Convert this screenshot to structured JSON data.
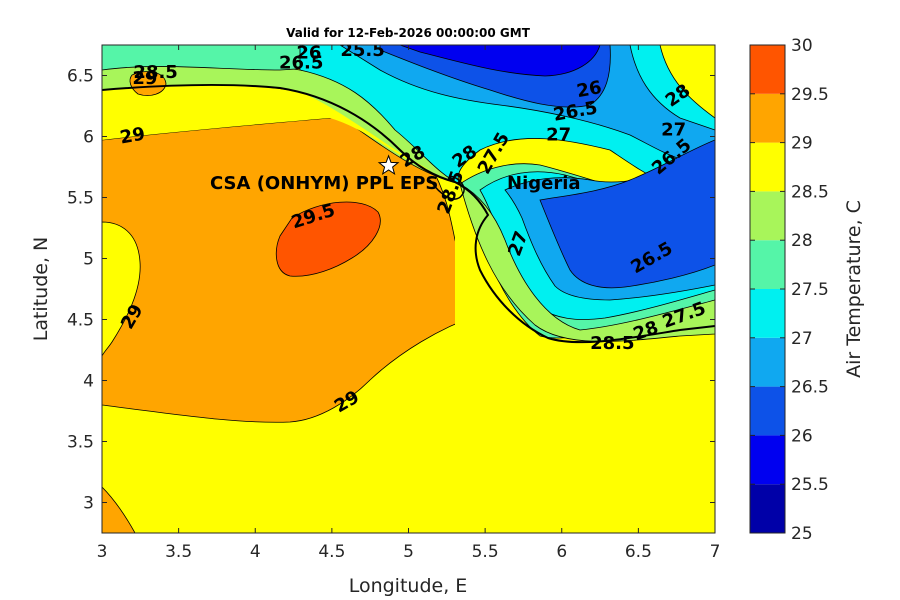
{
  "chart_data": {
    "type": "heatmap",
    "title": "Valid for 12-Feb-2026 00:00:00 GMT",
    "xlabel": "Longitude, E",
    "ylabel": "Latitude, N",
    "xlim": [
      3,
      7
    ],
    "ylim": [
      2.75,
      6.75
    ],
    "xticks": [
      "3",
      "3.5",
      "4",
      "4.5",
      "5",
      "5.5",
      "6",
      "6.5",
      "7"
    ],
    "yticks": [
      "3",
      "3.5",
      "4",
      "4.5",
      "5",
      "5.5",
      "6",
      "6.5"
    ],
    "colorbar": {
      "label": "Air Temperature, C",
      "ticks": [
        "25",
        "25.5",
        "26",
        "26.5",
        "27",
        "27.5",
        "28",
        "28.5",
        "29",
        "29.5",
        "30"
      ],
      "levels": [
        {
          "from": 25.0,
          "to": 25.5,
          "color": "#0000a8"
        },
        {
          "from": 25.5,
          "to": 26.0,
          "color": "#0000f0"
        },
        {
          "from": 26.0,
          "to": 26.5,
          "color": "#0d52e8"
        },
        {
          "from": 26.5,
          "to": 27.0,
          "color": "#10a8f0"
        },
        {
          "from": 27.0,
          "to": 27.5,
          "color": "#00f0f0"
        },
        {
          "from": 27.5,
          "to": 28.0,
          "color": "#55f5a8"
        },
        {
          "from": 28.0,
          "to": 28.5,
          "color": "#a8f55a"
        },
        {
          "from": 28.5,
          "to": 29.0,
          "color": "#ffff00"
        },
        {
          "from": 29.0,
          "to": 29.5,
          "color": "#ffa500"
        },
        {
          "from": 29.5,
          "to": 30.0,
          "color": "#ff5500"
        }
      ]
    },
    "contour_labels": [
      {
        "text": "29.5",
        "x": 4.38,
        "y": 5.34,
        "rot": -18
      },
      {
        "text": "29",
        "x": 3.2,
        "y": 6.0,
        "rot": -10
      },
      {
        "text": "29",
        "x": 3.2,
        "y": 4.52,
        "rot": -60
      },
      {
        "text": "29",
        "x": 4.6,
        "y": 3.82,
        "rot": -30
      },
      {
        "text": "28.5",
        "x": 3.35,
        "y": 6.52,
        "rot": 0
      },
      {
        "text": "29",
        "x": 3.28,
        "y": 6.47,
        "rot": 0
      },
      {
        "text": "26",
        "x": 4.35,
        "y": 6.68,
        "rot": 0
      },
      {
        "text": "26.5",
        "x": 4.3,
        "y": 6.6,
        "rot": 0
      },
      {
        "text": "25.5",
        "x": 4.7,
        "y": 6.7,
        "rot": 0
      },
      {
        "text": "26",
        "x": 6.18,
        "y": 6.38,
        "rot": -10
      },
      {
        "text": "26.5",
        "x": 6.09,
        "y": 6.2,
        "rot": -10
      },
      {
        "text": "27",
        "x": 5.98,
        "y": 6.01,
        "rot": 0
      },
      {
        "text": "28",
        "x": 6.76,
        "y": 6.33,
        "rot": -35
      },
      {
        "text": "27",
        "x": 6.73,
        "y": 6.05,
        "rot": 0
      },
      {
        "text": "26.5",
        "x": 6.72,
        "y": 5.83,
        "rot": -40
      },
      {
        "text": "28",
        "x": 5.03,
        "y": 5.83,
        "rot": -30
      },
      {
        "text": "28",
        "x": 5.37,
        "y": 5.83,
        "rot": -35
      },
      {
        "text": "27.5",
        "x": 5.56,
        "y": 5.86,
        "rot": -60
      },
      {
        "text": "28.5",
        "x": 5.28,
        "y": 5.54,
        "rot": -70
      },
      {
        "text": "27",
        "x": 5.72,
        "y": 5.12,
        "rot": -70
      },
      {
        "text": "26.5",
        "x": 6.59,
        "y": 5.0,
        "rot": -30
      },
      {
        "text": "28.5",
        "x": 6.33,
        "y": 4.3,
        "rot": 0
      },
      {
        "text": "27.5",
        "x": 6.8,
        "y": 4.53,
        "rot": -20
      },
      {
        "text": "28",
        "x": 6.55,
        "y": 4.4,
        "rot": -20
      }
    ],
    "site": {
      "label": "CSA (ONHYM) PPL EPS",
      "lon": 4.87,
      "lat": 5.76
    },
    "country_label": "Nigeria"
  }
}
